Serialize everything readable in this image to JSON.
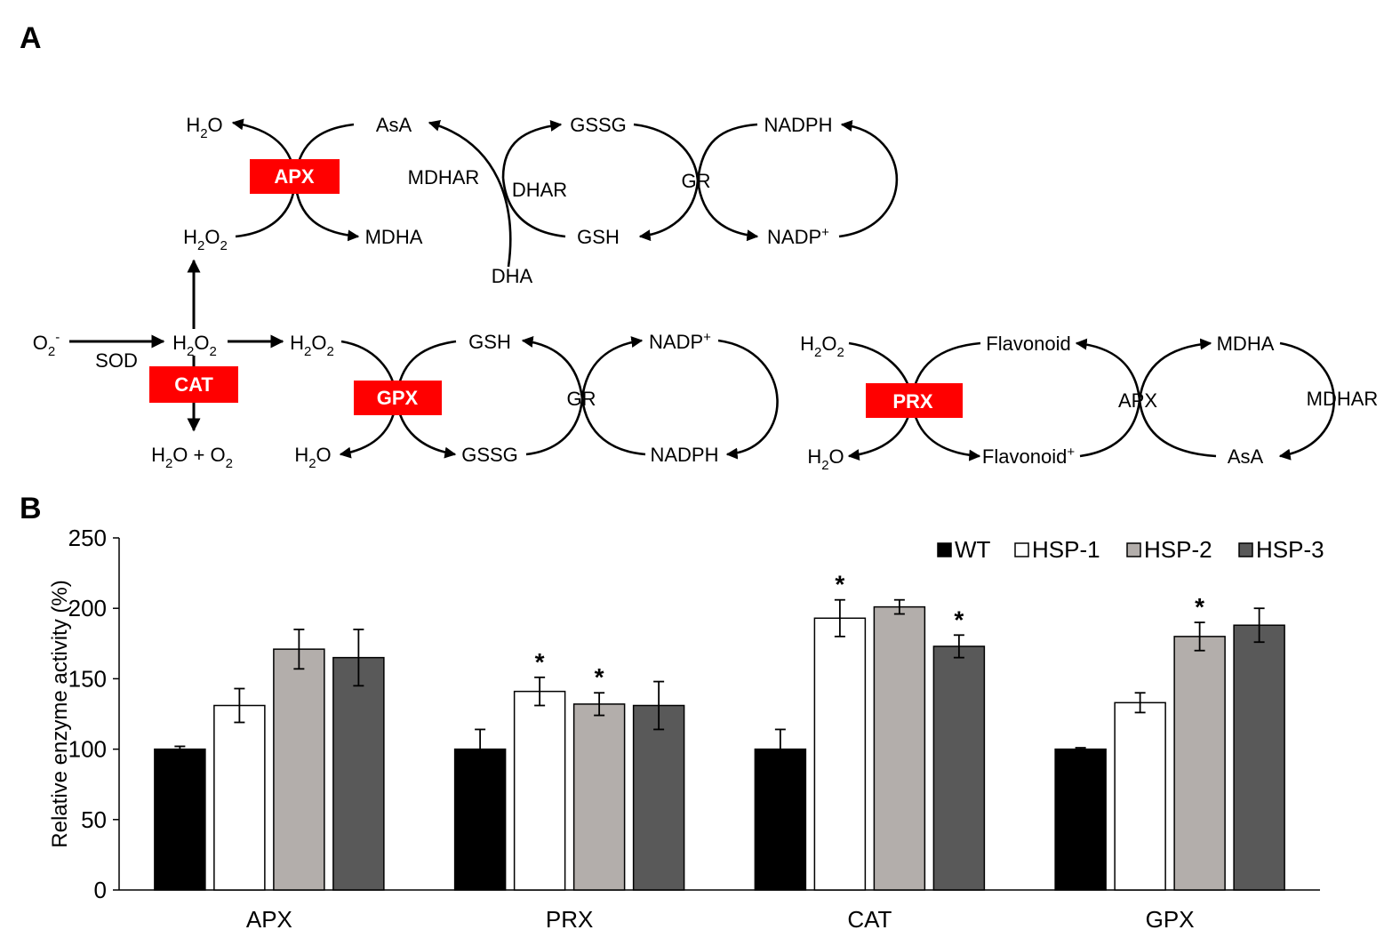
{
  "panel_a": {
    "label": "A",
    "apx_cycle": {
      "enzyme": "APX",
      "h2o": "H2O",
      "h2o2": "H2O2",
      "asa": "AsA",
      "mdha": "MDHA",
      "mdhar": "MDHAR",
      "dhar": "DHAR",
      "dha": "DHA",
      "gssg": "GSSG",
      "gsh": "GSH",
      "gr": "GR",
      "nadph": "NADPH",
      "nadp_plus": "NADP+"
    },
    "sod_branch": {
      "o2_minus": "O2-",
      "sod": "SOD",
      "h2o2": "H2O2",
      "cat": "CAT",
      "products": "H2O + O2"
    },
    "gpx_cycle": {
      "enzyme": "GPX",
      "h2o2": "H2O2",
      "h2o": "H2O",
      "gsh": "GSH",
      "gssg": "GSSG",
      "gr": "GR",
      "nadp_plus": "NADP+",
      "nadph": "NADPH"
    },
    "prx_cycle": {
      "enzyme": "PRX",
      "h2o2": "H2O2",
      "h2o": "H2O",
      "flavonoid": "Flavonoid",
      "flavonoid_plus": "Flavonoid+",
      "apx": "APX",
      "mdha": "MDHA",
      "mdhar": "MDHAR",
      "asa": "AsA"
    },
    "colors": {
      "enzyme_box": "#ff0000",
      "enzyme_text": "#ffffff",
      "line": "#000000"
    }
  },
  "panel_b": {
    "label": "B"
  },
  "chart_data": {
    "type": "bar",
    "title": "",
    "xlabel": "",
    "ylabel": "Relative enzyme activity (%)",
    "ylim": [
      0,
      250
    ],
    "yticks": [
      "0",
      "50",
      "100",
      "150",
      "200",
      "250"
    ],
    "categories": [
      "APX",
      "PRX",
      "CAT",
      "GPX"
    ],
    "legend_position": "top-right",
    "significance_marker": "*",
    "series": [
      {
        "name": "WT",
        "color": "#000000",
        "values": [
          100,
          100,
          100,
          100
        ],
        "errors": [
          2,
          14,
          14,
          1
        ],
        "significant": [
          false,
          false,
          false,
          false
        ]
      },
      {
        "name": "HSP-1",
        "color": "#ffffff",
        "values": [
          131,
          141,
          193,
          133
        ],
        "errors": [
          12,
          10,
          13,
          7
        ],
        "significant": [
          false,
          true,
          true,
          false
        ]
      },
      {
        "name": "HSP-2",
        "color": "#b3aeab",
        "values": [
          171,
          132,
          201,
          180
        ],
        "errors": [
          14,
          8,
          5,
          10
        ],
        "significant": [
          false,
          true,
          false,
          true
        ]
      },
      {
        "name": "HSP-3",
        "color": "#595959",
        "values": [
          165,
          131,
          173,
          188
        ],
        "errors": [
          20,
          17,
          8,
          12
        ],
        "significant": [
          false,
          false,
          true,
          false
        ]
      }
    ]
  }
}
